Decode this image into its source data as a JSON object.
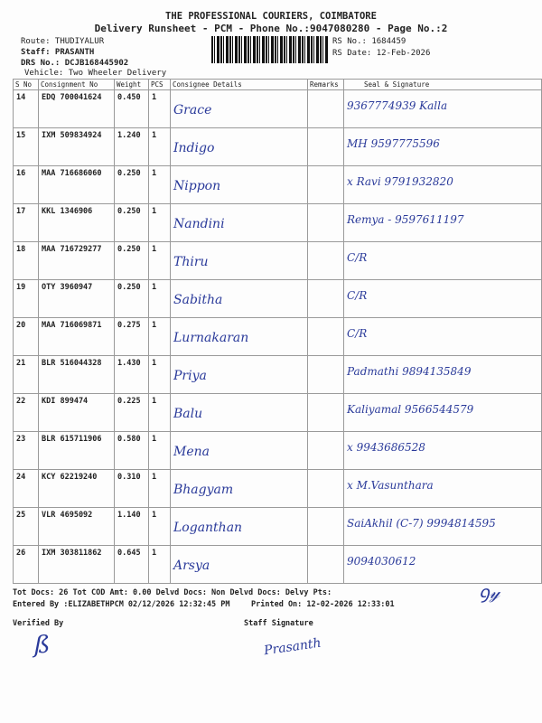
{
  "header": {
    "company": "THE PROFESSIONAL COURIERS, COIMBATORE",
    "subtitle": "Delivery Runsheet - PCM - Phone No.:9047080280 - Page No.:2",
    "route": "Route: THUDIYALUR",
    "staff": "Staff: PRASANTH",
    "drs": "DRS No.: DCJB168445902",
    "vehicle": "Vehicle: Two Wheeler Delivery",
    "rs_no": "RS No.: 1684459",
    "rs_date": "RS Date: 12-Feb-2026"
  },
  "columns": [
    "S No",
    "Consignment No",
    "Weight",
    "PCS",
    "Consignee Details",
    "Remarks",
    "Seal & Signature"
  ],
  "rows": [
    {
      "sno": "14",
      "cons": "EDQ 700041624",
      "wt": "0.450",
      "pcs": "1",
      "consignee": "Grace",
      "remarks": "",
      "sig": "9367774939 Kalla"
    },
    {
      "sno": "15",
      "cons": "IXM 509834924",
      "wt": "1.240",
      "pcs": "1",
      "consignee": "Indigo",
      "remarks": "",
      "sig": "MH 9597775596"
    },
    {
      "sno": "16",
      "cons": "MAA 716686060",
      "wt": "0.250",
      "pcs": "1",
      "consignee": "Nippon",
      "remarks": "",
      "sig": "x Ravi 9791932820"
    },
    {
      "sno": "17",
      "cons": "KKL 1346906",
      "wt": "0.250",
      "pcs": "1",
      "consignee": "Nandini",
      "remarks": "",
      "sig": "Remya - 9597611197"
    },
    {
      "sno": "18",
      "cons": "MAA 716729277",
      "wt": "0.250",
      "pcs": "1",
      "consignee": "Thiru",
      "remarks": "",
      "sig": "C/R"
    },
    {
      "sno": "19",
      "cons": "OTY 3960947",
      "wt": "0.250",
      "pcs": "1",
      "consignee": "Sabitha",
      "remarks": "",
      "sig": "C/R"
    },
    {
      "sno": "20",
      "cons": "MAA 716069871",
      "wt": "0.275",
      "pcs": "1",
      "consignee": "Lurnakaran",
      "remarks": "",
      "sig": "C/R"
    },
    {
      "sno": "21",
      "cons": "BLR 516044328",
      "wt": "1.430",
      "pcs": "1",
      "consignee": "Priya",
      "remarks": "",
      "sig": "Padmathi 9894135849"
    },
    {
      "sno": "22",
      "cons": "KDI 899474",
      "wt": "0.225",
      "pcs": "1",
      "consignee": "Balu",
      "remarks": "",
      "sig": "Kaliyamal 9566544579"
    },
    {
      "sno": "23",
      "cons": "BLR 615711906",
      "wt": "0.580",
      "pcs": "1",
      "consignee": "Mena",
      "remarks": "",
      "sig": "x 9943686528"
    },
    {
      "sno": "24",
      "cons": "KCY 62219240",
      "wt": "0.310",
      "pcs": "1",
      "consignee": "Bhagyam",
      "remarks": "",
      "sig": "x M.Vasunthara"
    },
    {
      "sno": "25",
      "cons": "VLR 4695092",
      "wt": "1.140",
      "pcs": "1",
      "consignee": "Loganthan",
      "remarks": "",
      "sig": "SaiAkhil (C-7) 9994814595"
    },
    {
      "sno": "26",
      "cons": "IXM 303811862",
      "wt": "0.645",
      "pcs": "1",
      "consignee": "Arsya",
      "remarks": "",
      "sig": "9094030612"
    }
  ],
  "footer": {
    "totals": "Tot Docs:  26    Tot COD Amt:     0.00     Delvd Docs:     Non Delvd Docs:     Delvy Pts:",
    "entered": "Entered By :ELIZABETHPCM 02/12/2026 12:32:45 PM",
    "printed": "Printed On: 12-02-2026 12:33:01",
    "verified_by": "Verified By",
    "staff_signature": "Staff Signature",
    "staff_sign_text": "Prasanth"
  },
  "colors": {
    "ink": "#2a3a9a",
    "print": "#222222"
  }
}
